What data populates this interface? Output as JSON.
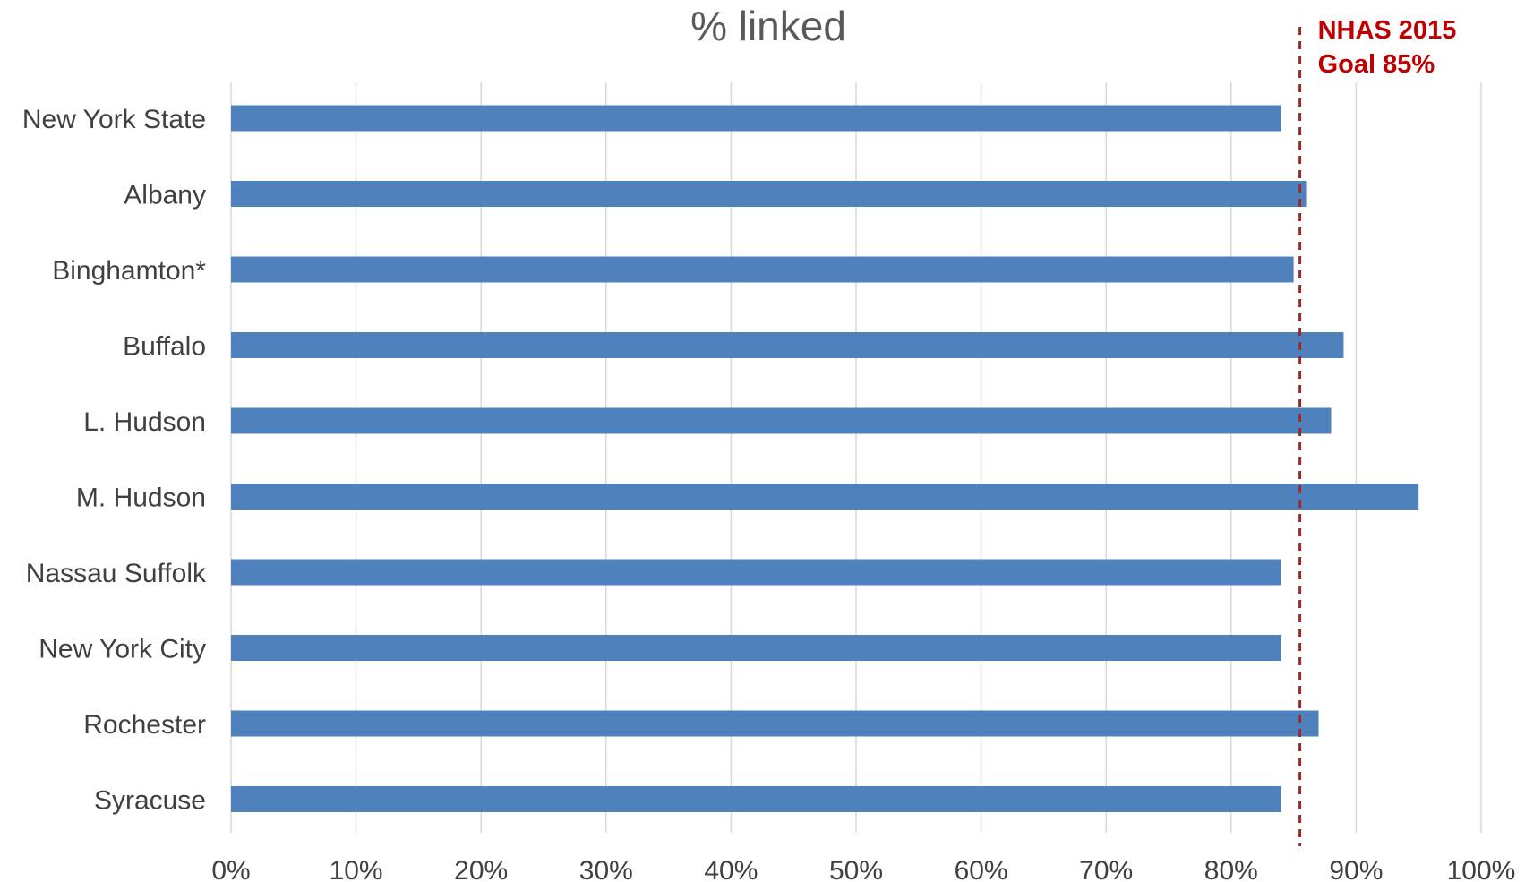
{
  "chart_data": {
    "type": "bar",
    "orientation": "horizontal",
    "title": "% linked",
    "xlabel": "",
    "ylabel": "",
    "categories": [
      "New York State",
      "Albany",
      "Binghamton*",
      "Buffalo",
      "L. Hudson",
      "M. Hudson",
      "Nassau Suffolk",
      "New York City",
      "Rochester",
      "Syracuse"
    ],
    "values": [
      84,
      86,
      85,
      89,
      88,
      95,
      84,
      84,
      87,
      84
    ],
    "xlim": [
      0,
      100
    ],
    "ticks": [
      0,
      10,
      20,
      30,
      40,
      50,
      60,
      70,
      80,
      90,
      100
    ],
    "tick_labels": [
      "0%",
      "10%",
      "20%",
      "30%",
      "40%",
      "50%",
      "60%",
      "70%",
      "80%",
      "90%",
      "100%"
    ],
    "grid": "vertical",
    "bar_color": "#4F81BD",
    "reference_line": {
      "value": 85.5,
      "style": "dashed",
      "color": "#9B2C2C",
      "label_lines": [
        "NHAS 2015",
        "Goal 85%"
      ],
      "label_color": "#C00000"
    }
  }
}
